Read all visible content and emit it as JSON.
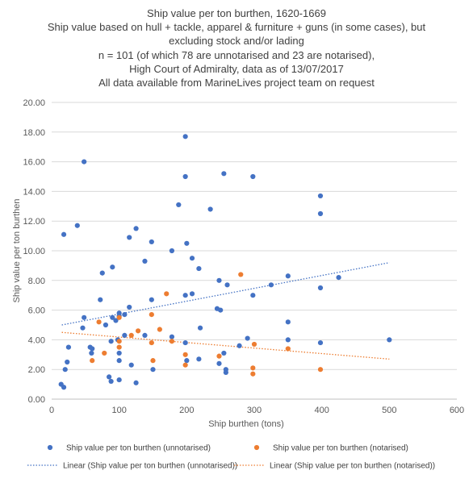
{
  "chart_data": {
    "type": "scatter",
    "title_lines": [
      "Ship value per ton burthen, 1620-1669",
      "Ship value based on hull + tackle, apparel & furniture + guns (in some cases), but",
      "excluding stock and/or lading",
      "n =  101 (of which 78 are unnotarised and 23 are notarised),",
      "High Court of Admiralty, data as of 13/07/2017",
      "All data available from MarineLives project team on request"
    ],
    "xlabel": "Ship burthen (tons)",
    "ylabel": "Ship value per ton burthen",
    "xlim": [
      0,
      600
    ],
    "ylim": [
      0,
      20
    ],
    "x_ticks": [
      "0",
      "100",
      "200",
      "300",
      "400",
      "500",
      "600"
    ],
    "y_ticks": [
      "0.00",
      "2.00",
      "4.00",
      "6.00",
      "8.00",
      "10.00",
      "12.00",
      "14.00",
      "16.00",
      "18.00",
      "20.00"
    ],
    "grid": "horizontal",
    "legend_position": "bottom",
    "series": [
      {
        "name": "Ship value per ton burthen (unnotarised)",
        "color": "#4472c4",
        "marker": "circle",
        "points": [
          [
            14,
            1.0
          ],
          [
            18,
            0.8
          ],
          [
            18,
            11.1
          ],
          [
            20,
            2.0
          ],
          [
            23,
            2.5
          ],
          [
            25,
            3.5
          ],
          [
            38,
            11.7
          ],
          [
            46,
            4.8
          ],
          [
            48,
            16.0
          ],
          [
            48,
            5.5
          ],
          [
            57,
            3.5
          ],
          [
            59,
            3.1
          ],
          [
            60,
            3.4
          ],
          [
            72,
            6.7
          ],
          [
            75,
            8.5
          ],
          [
            80,
            5.0
          ],
          [
            85,
            1.5
          ],
          [
            88,
            1.2
          ],
          [
            88,
            3.9
          ],
          [
            90,
            5.5
          ],
          [
            90,
            8.9
          ],
          [
            95,
            5.3
          ],
          [
            98,
            4.0
          ],
          [
            100,
            2.6
          ],
          [
            100,
            3.1
          ],
          [
            100,
            1.3
          ],
          [
            100,
            5.8
          ],
          [
            100,
            5.6
          ],
          [
            108,
            5.7
          ],
          [
            108,
            4.3
          ],
          [
            115,
            10.9
          ],
          [
            115,
            6.2
          ],
          [
            118,
            2.3
          ],
          [
            125,
            11.5
          ],
          [
            125,
            1.1
          ],
          [
            138,
            4.3
          ],
          [
            138,
            9.3
          ],
          [
            148,
            6.7
          ],
          [
            148,
            10.6
          ],
          [
            150,
            2.0
          ],
          [
            178,
            4.2
          ],
          [
            178,
            10.0
          ],
          [
            188,
            13.1
          ],
          [
            198,
            17.7
          ],
          [
            198,
            3.8
          ],
          [
            198,
            15.0
          ],
          [
            198,
            7.0
          ],
          [
            200,
            10.5
          ],
          [
            200,
            2.6
          ],
          [
            208,
            7.1
          ],
          [
            208,
            9.5
          ],
          [
            218,
            8.8
          ],
          [
            218,
            2.7
          ],
          [
            220,
            4.8
          ],
          [
            235,
            12.8
          ],
          [
            245,
            6.1
          ],
          [
            248,
            8.0
          ],
          [
            250,
            6.0
          ],
          [
            248,
            2.4
          ],
          [
            255,
            15.2
          ],
          [
            255,
            3.1
          ],
          [
            258,
            2.0
          ],
          [
            258,
            1.8
          ],
          [
            260,
            7.7
          ],
          [
            278,
            3.6
          ],
          [
            290,
            4.1
          ],
          [
            298,
            15.0
          ],
          [
            298,
            7.0
          ],
          [
            325,
            7.7
          ],
          [
            350,
            8.3
          ],
          [
            350,
            5.2
          ],
          [
            350,
            4.0
          ],
          [
            398,
            13.7
          ],
          [
            398,
            12.5
          ],
          [
            398,
            7.5
          ],
          [
            425,
            8.2
          ],
          [
            500,
            4.0
          ],
          [
            398,
            3.8
          ]
        ]
      },
      {
        "name": "Ship value per ton burthen (notarised)",
        "color": "#ed7d31",
        "marker": "circle",
        "points": [
          [
            60,
            2.6
          ],
          [
            70,
            5.2
          ],
          [
            78,
            3.1
          ],
          [
            100,
            3.9
          ],
          [
            100,
            3.5
          ],
          [
            100,
            5.5
          ],
          [
            118,
            4.3
          ],
          [
            128,
            4.6
          ],
          [
            148,
            5.7
          ],
          [
            148,
            3.8
          ],
          [
            150,
            2.6
          ],
          [
            160,
            4.7
          ],
          [
            170,
            7.1
          ],
          [
            178,
            3.9
          ],
          [
            198,
            2.3
          ],
          [
            198,
            3.0
          ],
          [
            248,
            2.9
          ],
          [
            280,
            8.4
          ],
          [
            298,
            2.1
          ],
          [
            298,
            1.7
          ],
          [
            300,
            3.7
          ],
          [
            350,
            3.4
          ],
          [
            398,
            2.0
          ]
        ]
      }
    ],
    "trendlines": [
      {
        "name": "Linear (Ship value per ton burthen (unnotarised))",
        "color": "#4472c4",
        "style": "dotted",
        "x": [
          15,
          500
        ],
        "y": [
          5.0,
          9.2
        ]
      },
      {
        "name": "Linear (Ship value per ton burthen (notarised))",
        "color": "#ed7d31",
        "style": "dotted",
        "x": [
          15,
          500
        ],
        "y": [
          4.5,
          2.7
        ]
      }
    ],
    "axis_color": "#bfbfbf",
    "grid_color": "#d9d9d9"
  }
}
